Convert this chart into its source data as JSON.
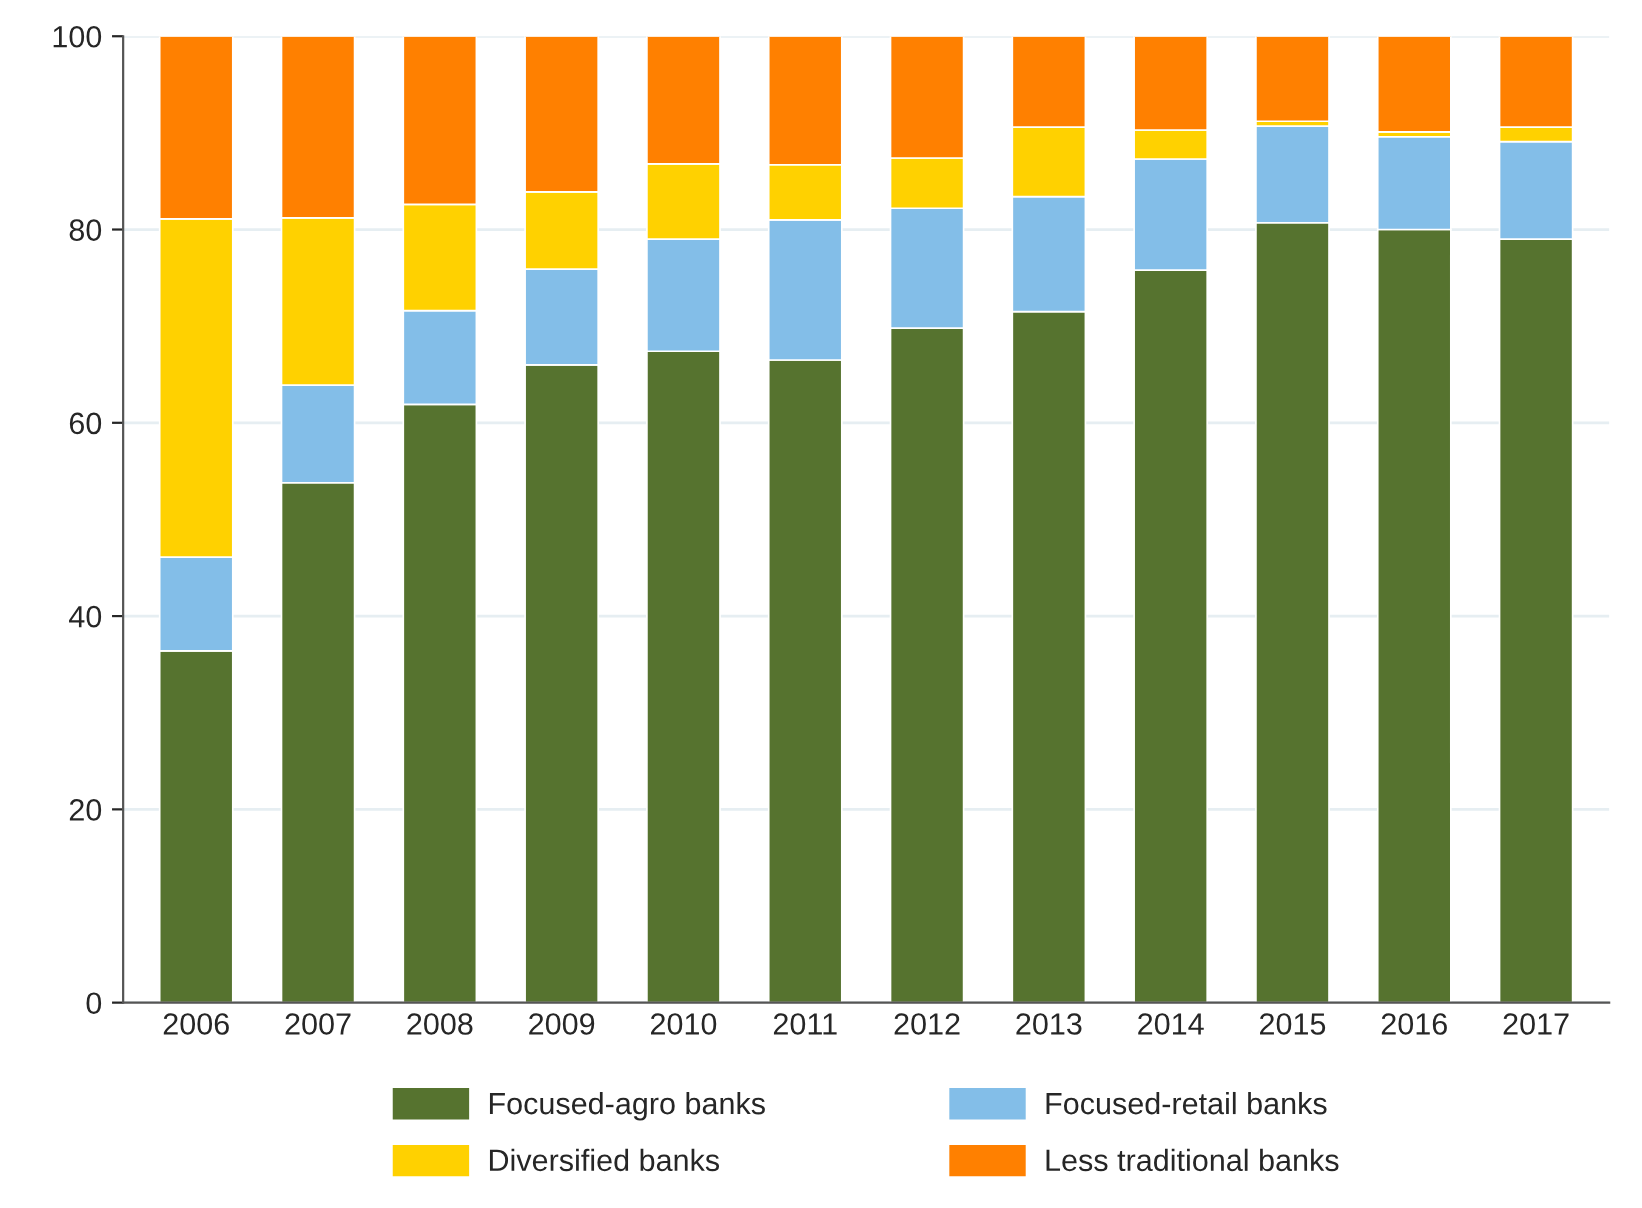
{
  "chart_data": {
    "type": "bar",
    "stacked": true,
    "categories": [
      "2006",
      "2007",
      "2008",
      "2009",
      "2010",
      "2011",
      "2012",
      "2013",
      "2014",
      "2015",
      "2016",
      "2017"
    ],
    "series": [
      {
        "name": "Focused-agro banks",
        "color": "#56732f",
        "values": [
          36.4,
          53.8,
          61.9,
          66.0,
          67.4,
          66.5,
          69.8,
          71.5,
          75.8,
          80.7,
          80.0,
          79.0
        ]
      },
      {
        "name": "Focused-retail banks",
        "color": "#83bee8",
        "values": [
          9.7,
          10.1,
          9.7,
          9.9,
          11.6,
          14.5,
          12.4,
          11.9,
          11.5,
          10.0,
          9.6,
          10.1
        ]
      },
      {
        "name": "Diversified banks",
        "color": "#ffd100",
        "values": [
          35.0,
          17.3,
          11.0,
          8.0,
          7.8,
          5.7,
          5.2,
          7.2,
          3.0,
          0.5,
          0.5,
          1.5
        ]
      },
      {
        "name": "Less traditional banks",
        "color": "#ff8000",
        "values": [
          18.9,
          18.8,
          17.4,
          16.1,
          13.2,
          13.3,
          12.6,
          9.4,
          9.7,
          8.8,
          9.9,
          9.4
        ]
      }
    ],
    "ylim": [
      0,
      100
    ],
    "yticks": [
      0,
      20,
      40,
      60,
      80,
      100
    ],
    "grid": "y",
    "legend": "bottom"
  }
}
